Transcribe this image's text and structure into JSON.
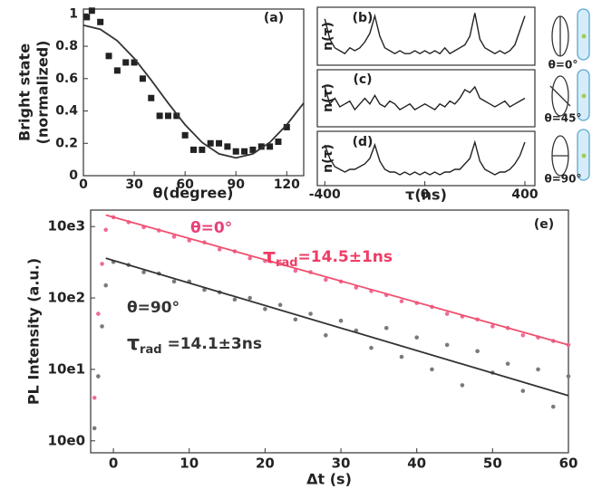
{
  "chart_data": [
    {
      "type": "scatter",
      "panel_label": "(a)",
      "xlabel": "θ(degree)",
      "ylabel": [
        "Bright state",
        "(normalized)"
      ],
      "xlim": [
        0,
        130
      ],
      "xticks": [
        0,
        30,
        60,
        90,
        120
      ],
      "ylim": [
        0,
        1.03
      ],
      "yticks": [
        0,
        0.2,
        0.4,
        0.6,
        0.8,
        1
      ],
      "marker": "square",
      "series": [
        {
          "color": "#222",
          "x": [
            2,
            5,
            10,
            15,
            20,
            25,
            30,
            35,
            40,
            45,
            50,
            55,
            60,
            65,
            70,
            75,
            80,
            85,
            90,
            95,
            100,
            105,
            110,
            115,
            120
          ],
          "values": [
            0.98,
            1.02,
            0.95,
            0.74,
            0.65,
            0.7,
            0.7,
            0.6,
            0.48,
            0.37,
            0.37,
            0.37,
            0.25,
            0.16,
            0.16,
            0.2,
            0.2,
            0.18,
            0.15,
            0.15,
            0.16,
            0.18,
            0.18,
            0.21,
            0.3
          ]
        }
      ],
      "fit": [
        {
          "color": "#333",
          "x": [
            0,
            10,
            20,
            30,
            40,
            50,
            60,
            70,
            80,
            90,
            100,
            110,
            120,
            130
          ],
          "values": [
            0.93,
            0.905,
            0.834,
            0.725,
            0.591,
            0.449,
            0.315,
            0.206,
            0.135,
            0.11,
            0.135,
            0.206,
            0.315,
            0.449
          ]
        }
      ]
    },
    {
      "type": "line",
      "panel_label": "(b)",
      "ylabel": "n(τ)",
      "xlim": [
        -430,
        440
      ],
      "ylim": [
        0,
        1
      ],
      "annotations": [
        {
          "text": "θ=0°",
          "color": "#222"
        }
      ],
      "series": [
        {
          "color": "#222",
          "x": [
            -400,
            -380,
            -360,
            -340,
            -320,
            -300,
            -280,
            -260,
            -240,
            -220,
            -200,
            -180,
            -160,
            -140,
            -120,
            -100,
            -80,
            -60,
            -40,
            -20,
            0,
            20,
            40,
            60,
            80,
            100,
            120,
            140,
            160,
            180,
            200,
            220,
            240,
            260,
            280,
            300,
            320,
            340,
            360,
            380,
            400
          ],
          "values": [
            0.8,
            0.45,
            0.3,
            0.25,
            0.2,
            0.3,
            0.25,
            0.3,
            0.4,
            0.55,
            0.85,
            0.5,
            0.3,
            0.25,
            0.2,
            0.25,
            0.2,
            0.2,
            0.25,
            0.2,
            0.25,
            0.2,
            0.25,
            0.2,
            0.3,
            0.2,
            0.25,
            0.3,
            0.35,
            0.5,
            0.9,
            0.45,
            0.3,
            0.25,
            0.2,
            0.25,
            0.2,
            0.25,
            0.35,
            0.6,
            0.85
          ]
        }
      ]
    },
    {
      "type": "line",
      "panel_label": "(c)",
      "ylabel": "n(τ)",
      "xlim": [
        -430,
        440
      ],
      "ylim": [
        0,
        1
      ],
      "annotations": [
        {
          "text": "θ=45°",
          "color": "#222"
        }
      ],
      "series": [
        {
          "color": "#222",
          "x": [
            -400,
            -380,
            -360,
            -340,
            -320,
            -300,
            -280,
            -260,
            -240,
            -220,
            -200,
            -180,
            -160,
            -140,
            -120,
            -100,
            -80,
            -60,
            -40,
            -20,
            0,
            20,
            40,
            60,
            80,
            100,
            120,
            140,
            160,
            180,
            200,
            220,
            240,
            260,
            280,
            300,
            320,
            340,
            360,
            380,
            400
          ],
          "values": [
            0.7,
            0.4,
            0.5,
            0.35,
            0.4,
            0.45,
            0.3,
            0.4,
            0.5,
            0.4,
            0.55,
            0.4,
            0.35,
            0.45,
            0.4,
            0.3,
            0.35,
            0.4,
            0.3,
            0.35,
            0.4,
            0.35,
            0.3,
            0.4,
            0.35,
            0.45,
            0.4,
            0.5,
            0.65,
            0.6,
            0.7,
            0.5,
            0.45,
            0.4,
            0.35,
            0.4,
            0.45,
            0.35,
            0.4,
            0.45,
            0.5
          ]
        }
      ]
    },
    {
      "type": "line",
      "panel_label": "(d)",
      "ylabel": "n(τ)",
      "xlabel": "τ(ns)",
      "xlim": [
        -430,
        440
      ],
      "xticks": [
        -400,
        0,
        400
      ],
      "ylim": [
        0,
        1
      ],
      "annotations": [
        {
          "text": "θ=90°",
          "color": "#222"
        }
      ],
      "series": [
        {
          "color": "#222",
          "x": [
            -400,
            -380,
            -360,
            -340,
            -320,
            -300,
            -280,
            -260,
            -240,
            -220,
            -200,
            -180,
            -160,
            -140,
            -120,
            -100,
            -80,
            -60,
            -40,
            -20,
            0,
            20,
            40,
            60,
            80,
            100,
            120,
            140,
            160,
            180,
            200,
            220,
            240,
            260,
            280,
            300,
            320,
            340,
            360,
            380,
            400
          ],
          "values": [
            0.75,
            0.5,
            0.35,
            0.3,
            0.25,
            0.3,
            0.3,
            0.35,
            0.4,
            0.5,
            0.75,
            0.45,
            0.3,
            0.25,
            0.25,
            0.2,
            0.25,
            0.2,
            0.25,
            0.2,
            0.25,
            0.2,
            0.25,
            0.2,
            0.25,
            0.25,
            0.3,
            0.3,
            0.4,
            0.5,
            0.8,
            0.45,
            0.3,
            0.25,
            0.2,
            0.25,
            0.25,
            0.3,
            0.4,
            0.55,
            0.8
          ]
        }
      ]
    },
    {
      "type": "scatter",
      "panel_label": "(e)",
      "xlabel": "Δt (s)",
      "ylabel": "PL Intensity (a.u.)",
      "xlim": [
        -3,
        60
      ],
      "xticks": [
        0,
        10,
        20,
        30,
        40,
        50,
        60
      ],
      "log_y": true,
      "ylim": [
        0.68,
        1700
      ],
      "yticks": [
        {
          "value": 1,
          "label": "10e0"
        },
        {
          "value": 10,
          "label": "10e1"
        },
        {
          "value": 100,
          "label": "10e2"
        },
        {
          "value": 1000,
          "label": "10e3"
        }
      ],
      "marker": "circle",
      "series": [
        {
          "color": "#f06b9a",
          "x": [
            -2.5,
            -2,
            -1.5,
            -1,
            0,
            2,
            4,
            6,
            8,
            10,
            12,
            14,
            16,
            18,
            20,
            22,
            24,
            26,
            28,
            30,
            32,
            34,
            36,
            38,
            40,
            42,
            44,
            46,
            48,
            50,
            52,
            54,
            56,
            58,
            60
          ],
          "values": [
            4,
            60,
            300,
            900,
            1350,
            1150,
            980,
            880,
            720,
            640,
            600,
            480,
            450,
            360,
            330,
            300,
            240,
            230,
            180,
            170,
            140,
            125,
            110,
            90,
            85,
            75,
            60,
            55,
            50,
            40,
            38,
            30,
            28,
            25,
            22
          ]
        },
        {
          "color": "#7a7a7a",
          "x": [
            -2.5,
            -2,
            -1.5,
            -1,
            0,
            2,
            4,
            6,
            8,
            10,
            12,
            14,
            16,
            18,
            20,
            22,
            24,
            26,
            28,
            30,
            32,
            34,
            36,
            38,
            40,
            42,
            44,
            46,
            48,
            50,
            52,
            54,
            56,
            58,
            60
          ],
          "values": [
            1.5,
            8,
            40,
            150,
            320,
            290,
            230,
            220,
            170,
            170,
            130,
            120,
            95,
            100,
            70,
            80,
            50,
            60,
            30,
            48,
            35,
            20,
            38,
            15,
            28,
            10,
            22,
            6,
            18,
            9,
            12,
            5,
            10,
            3,
            8
          ]
        }
      ],
      "fit": [
        {
          "color": "#f0506e",
          "x": [
            -1,
            60
          ],
          "values": [
            1450,
            22
          ]
        },
        {
          "color": "#333",
          "x": [
            -1,
            60
          ],
          "values": [
            360,
            4.3
          ]
        }
      ],
      "annotations": [
        {
          "text": "θ=0°",
          "color": "#e8407a"
        },
        {
          "symbol": "τ",
          "subscript": "rad",
          "text": "=14.5±1ns",
          "color": "#f03c64"
        },
        {
          "text": "θ=90°",
          "color": "#333"
        },
        {
          "symbol": "τ",
          "subscript": "rad",
          "text": " =14.1±3ns",
          "color": "#333"
        }
      ]
    }
  ]
}
